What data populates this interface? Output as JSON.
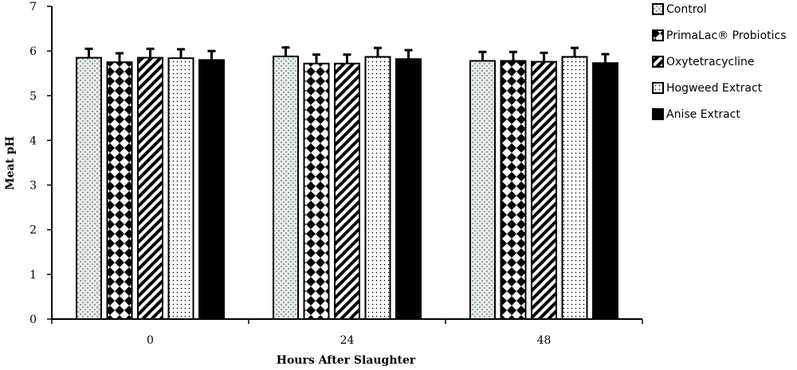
{
  "chart_data": {
    "type": "bar",
    "title": "",
    "xlabel": "Hours After Slaughter",
    "ylabel": "Meat pH",
    "ylim": [
      0,
      7
    ],
    "yticks": [
      0,
      1,
      2,
      3,
      4,
      5,
      6,
      7
    ],
    "grid": false,
    "legend_position": "top-right",
    "categories": [
      "0",
      "24",
      "48"
    ],
    "series": [
      {
        "name": "Control",
        "pattern": "fine-dots",
        "values": [
          5.85,
          5.88,
          5.78
        ],
        "errors": [
          0.2,
          0.2,
          0.2
        ]
      },
      {
        "name": "PrimaLac® Probiotics",
        "pattern": "checkerboard",
        "values": [
          5.75,
          5.72,
          5.78
        ],
        "errors": [
          0.2,
          0.2,
          0.2
        ]
      },
      {
        "name": "Oxytetracycline",
        "pattern": "diagonal-stripes",
        "values": [
          5.85,
          5.72,
          5.76
        ],
        "errors": [
          0.2,
          0.2,
          0.2
        ]
      },
      {
        "name": "Hogweed Extract",
        "pattern": "dots",
        "values": [
          5.84,
          5.87,
          5.87
        ],
        "errors": [
          0.2,
          0.2,
          0.2
        ]
      },
      {
        "name": "Anise Extract",
        "pattern": "solid-black",
        "values": [
          5.8,
          5.82,
          5.73
        ],
        "errors": [
          0.2,
          0.2,
          0.2
        ]
      }
    ]
  }
}
